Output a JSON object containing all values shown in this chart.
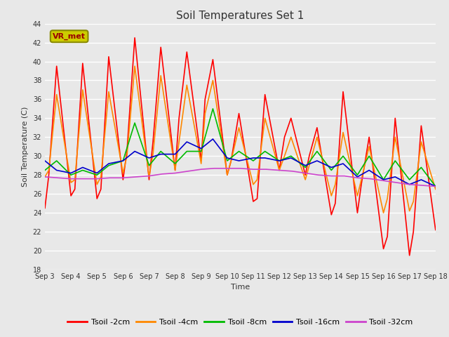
{
  "title": "Soil Temperatures Set 1",
  "xlabel": "Time",
  "ylabel": "Soil Temperature (C)",
  "ylim": [
    18,
    44
  ],
  "background_color": "#e8e8e8",
  "plot_bg_color": "#e8e8e8",
  "grid_color": "white",
  "annotation_text": "VR_met",
  "annotation_box_color": "#cccc00",
  "annotation_text_color": "#990000",
  "x_tick_labels": [
    "Sep 3",
    "Sep 4",
    "Sep 5",
    "Sep 6",
    "Sep 7",
    "Sep 8",
    "Sep 9",
    "Sep 10",
    "Sep 11",
    "Sep 12",
    "Sep 13",
    "Sep 14",
    "Sep 15",
    "Sep 16",
    "Sep 17",
    "Sep 18"
  ],
  "series": {
    "Tsoil -2cm": {
      "color": "#ff0000",
      "data_x": [
        0,
        0.15,
        0.45,
        1.0,
        1.15,
        1.45,
        2.0,
        2.15,
        2.45,
        3.0,
        3.15,
        3.45,
        4.0,
        4.15,
        4.45,
        5.0,
        5.15,
        5.45,
        6.0,
        6.15,
        6.45,
        7.0,
        7.15,
        7.45,
        8.0,
        8.15,
        8.45,
        9.0,
        9.2,
        9.45,
        10.0,
        10.15,
        10.45,
        11.0,
        11.15,
        11.45,
        12.0,
        12.15,
        12.45,
        13.0,
        13.15,
        13.45,
        14.0,
        14.15,
        14.45,
        15.0
      ],
      "data_y": [
        24.5,
        28.0,
        39.5,
        25.8,
        26.5,
        39.8,
        25.5,
        26.5,
        40.5,
        27.5,
        30.5,
        42.5,
        27.5,
        31.5,
        41.5,
        28.5,
        34.0,
        41.0,
        29.5,
        36.0,
        40.2,
        28.0,
        29.5,
        34.5,
        25.2,
        25.5,
        36.5,
        28.5,
        32.0,
        34.0,
        28.0,
        30.0,
        33.0,
        23.8,
        25.0,
        36.8,
        24.0,
        27.0,
        32.0,
        20.2,
        21.5,
        34.0,
        19.5,
        22.0,
        33.2,
        22.2
      ]
    },
    "Tsoil -4cm": {
      "color": "#ff8800",
      "data_x": [
        0,
        0.15,
        0.45,
        1.0,
        1.15,
        1.45,
        2.0,
        2.15,
        2.45,
        3.0,
        3.15,
        3.45,
        4.0,
        4.15,
        4.45,
        5.0,
        5.15,
        5.45,
        6.0,
        6.15,
        6.45,
        7.0,
        7.15,
        7.45,
        8.0,
        8.15,
        8.45,
        9.0,
        9.2,
        9.45,
        10.0,
        10.15,
        10.45,
        11.0,
        11.15,
        11.45,
        12.0,
        12.15,
        12.45,
        13.0,
        13.15,
        13.45,
        14.0,
        14.15,
        14.45,
        15.0
      ],
      "data_y": [
        27.8,
        28.5,
        36.5,
        27.2,
        27.5,
        37.0,
        27.0,
        27.8,
        36.8,
        28.2,
        30.0,
        39.5,
        27.8,
        30.2,
        38.5,
        28.5,
        31.5,
        37.5,
        29.2,
        34.5,
        38.0,
        28.0,
        29.5,
        33.0,
        27.0,
        27.5,
        34.0,
        28.5,
        30.0,
        32.0,
        27.5,
        29.0,
        32.0,
        25.8,
        27.0,
        32.5,
        25.8,
        27.5,
        31.0,
        24.0,
        25.5,
        32.0,
        24.2,
        25.2,
        31.5,
        26.5
      ]
    },
    "Tsoil -8cm": {
      "color": "#00bb00",
      "data_x": [
        0,
        0.45,
        1.0,
        1.45,
        2.0,
        2.45,
        3.0,
        3.45,
        4.0,
        4.45,
        5.0,
        5.45,
        6.0,
        6.45,
        7.0,
        7.45,
        8.0,
        8.45,
        9.0,
        9.45,
        10.0,
        10.45,
        11.0,
        11.45,
        12.0,
        12.45,
        13.0,
        13.45,
        14.0,
        14.45,
        15.0
      ],
      "data_y": [
        28.5,
        29.5,
        28.0,
        28.5,
        28.0,
        29.0,
        29.5,
        33.5,
        29.0,
        30.5,
        29.2,
        30.5,
        30.5,
        35.0,
        29.5,
        30.5,
        29.5,
        30.5,
        29.5,
        30.0,
        28.8,
        30.5,
        28.5,
        30.0,
        28.0,
        30.0,
        27.5,
        29.5,
        27.5,
        28.8,
        26.8
      ]
    },
    "Tsoil -16cm": {
      "color": "#0000cc",
      "data_x": [
        0,
        0.45,
        1.0,
        1.45,
        2.0,
        2.45,
        3.0,
        3.45,
        4.0,
        4.45,
        5.0,
        5.45,
        6.0,
        6.45,
        7.0,
        7.45,
        8.0,
        8.45,
        9.0,
        9.45,
        10.0,
        10.45,
        11.0,
        11.45,
        12.0,
        12.45,
        13.0,
        13.45,
        14.0,
        14.45,
        15.0
      ],
      "data_y": [
        29.5,
        28.5,
        28.2,
        28.8,
        28.2,
        29.2,
        29.5,
        30.5,
        29.8,
        30.2,
        30.2,
        31.5,
        30.8,
        31.8,
        29.8,
        29.5,
        29.8,
        29.8,
        29.5,
        29.8,
        29.0,
        29.5,
        28.8,
        29.2,
        27.8,
        28.5,
        27.5,
        27.8,
        27.0,
        27.5,
        26.8
      ]
    },
    "Tsoil -32cm": {
      "color": "#cc44cc",
      "data_x": [
        0,
        0.5,
        1.0,
        1.5,
        2.0,
        2.5,
        3.0,
        3.5,
        4.0,
        4.5,
        5.0,
        5.5,
        6.0,
        6.5,
        7.0,
        7.5,
        8.0,
        8.5,
        9.0,
        9.5,
        10.0,
        10.5,
        11.0,
        11.5,
        12.0,
        12.5,
        13.0,
        13.5,
        14.0,
        14.5,
        15.0
      ],
      "data_y": [
        27.8,
        27.7,
        27.6,
        27.6,
        27.6,
        27.7,
        27.7,
        27.8,
        27.9,
        28.1,
        28.2,
        28.4,
        28.6,
        28.7,
        28.7,
        28.7,
        28.6,
        28.6,
        28.5,
        28.4,
        28.2,
        28.0,
        27.9,
        27.9,
        27.7,
        27.6,
        27.4,
        27.2,
        27.0,
        26.9,
        26.8
      ]
    }
  },
  "title_fontsize": 11,
  "axis_label_fontsize": 8,
  "tick_fontsize": 7,
  "legend_fontsize": 8
}
